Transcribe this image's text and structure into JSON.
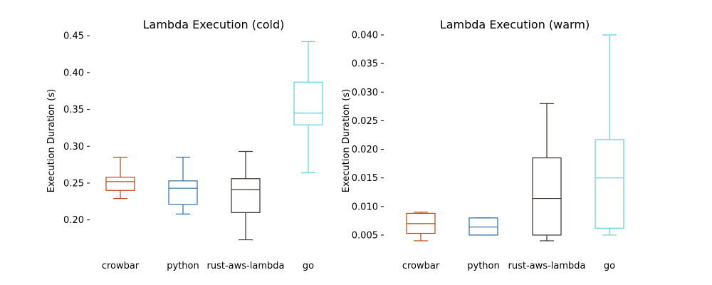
{
  "chart_data": [
    {
      "type": "box",
      "title": "Lambda Execution (cold)",
      "xlabel": "",
      "ylabel": "Execution Duration (s)",
      "categories": [
        "crowbar",
        "python",
        "rust-aws-lambda",
        "go"
      ],
      "ylim": [
        0.16,
        0.455
      ],
      "yticks": [
        0.2,
        0.25,
        0.3,
        0.35,
        0.4,
        0.45
      ],
      "ytick_labels": [
        "0.20",
        "0.25",
        "0.30",
        "0.35",
        "0.40",
        "0.45"
      ],
      "grid": false,
      "boxes": [
        {
          "category": "crowbar",
          "whislo": 0.229,
          "q1": 0.24,
          "med": 0.252,
          "q3": 0.258,
          "whishi": 0.285,
          "color": "#c1440e"
        },
        {
          "category": "python",
          "whislo": 0.208,
          "q1": 0.221,
          "med": 0.243,
          "q3": 0.253,
          "whishi": 0.285,
          "color": "#2b6cb0"
        },
        {
          "category": "rust-aws-lambda",
          "whislo": 0.173,
          "q1": 0.21,
          "med": 0.241,
          "q3": 0.256,
          "whishi": 0.293,
          "color": "#3d3028"
        },
        {
          "category": "go",
          "whislo": 0.264,
          "q1": 0.329,
          "med": 0.345,
          "q3": 0.387,
          "whishi": 0.442,
          "color": "#5ad3de"
        }
      ]
    },
    {
      "type": "box",
      "title": "Lambda Execution (warm)",
      "xlabel": "",
      "ylabel": "Execution Duration (s)",
      "categories": [
        "crowbar",
        "python",
        "rust-aws-lambda",
        "go"
      ],
      "ylim": [
        0.0025,
        0.0405
      ],
      "yticks": [
        0.005,
        0.01,
        0.015,
        0.02,
        0.025,
        0.03,
        0.035,
        0.04
      ],
      "ytick_labels": [
        "0.005",
        "0.010",
        "0.015",
        "0.020",
        "0.025",
        "0.030",
        "0.035",
        "0.040"
      ],
      "grid": false,
      "boxes": [
        {
          "category": "crowbar",
          "whislo": 0.004,
          "q1": 0.0053,
          "med": 0.007,
          "q3": 0.0088,
          "whishi": 0.009,
          "color": "#c1440e"
        },
        {
          "category": "python",
          "whislo": 0.005,
          "q1": 0.005,
          "med": 0.0064,
          "q3": 0.008,
          "whishi": 0.008,
          "color": "#2b6cb0"
        },
        {
          "category": "rust-aws-lambda",
          "whislo": 0.004,
          "q1": 0.005,
          "med": 0.0114,
          "q3": 0.0185,
          "whishi": 0.028,
          "color": "#3d3028"
        },
        {
          "category": "go",
          "whislo": 0.005,
          "q1": 0.0062,
          "med": 0.015,
          "q3": 0.0217,
          "whishi": 0.04,
          "color": "#5ad3de"
        }
      ]
    }
  ]
}
